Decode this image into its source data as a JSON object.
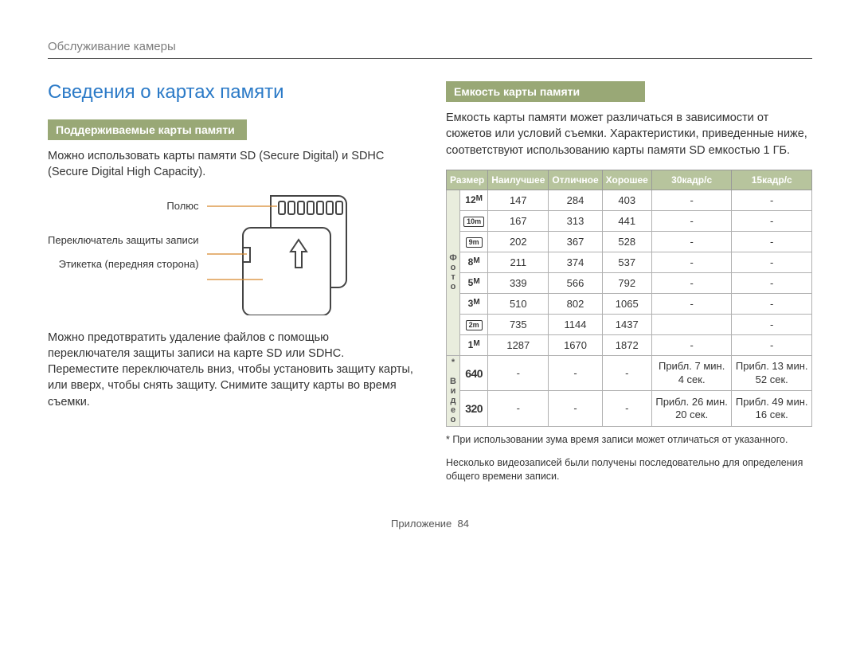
{
  "colors": {
    "accent_blue": "#2b7ac7",
    "bar_green": "#99a876",
    "header_green": "#b7c49d",
    "rowhead_bg": "#e9eddd",
    "border": "#b0b0b0",
    "grey_text": "#7d7d7d",
    "leader_orange": "#d6872a"
  },
  "breadcrumb": "Обслуживание камеры",
  "title": "Сведения о картах памяти",
  "left": {
    "section_heading": "Поддерживаемые карты памяти",
    "para1": "Можно использовать карты памяти SD (Secure Digital) и SDHC (Secure Digital High Capacity).",
    "labels": {
      "terminal": "Полюс",
      "switch": "Переключатель защиты записи",
      "label_side": "Этикетка (передняя сторона)"
    },
    "para2": "Можно предотвратить удаление файлов с помощью переключателя защиты записи на карте SD или SDHC. Переместите переключатель вниз, чтобы установить защиту карты, или вверх, чтобы снять защиту. Снимите защиту карты во время съемки."
  },
  "right": {
    "section_heading": "Емкость карты памяти",
    "para1": "Емкость карты памяти может различаться в зависимости от сюжетов или условий съемки. Характеристики, приведенные ниже, соответствуют использованию карты памяти SD емкостью 1 ГБ.",
    "table": {
      "headers": [
        "Размер",
        "Наилучшее",
        "Отличное",
        "Хорошее",
        "30кадр/с",
        "15кадр/с"
      ],
      "group_photo_label": "Фото",
      "group_video_label": "* Видео",
      "photo_rows": [
        {
          "size_html": "12<span class='m'>M</span>",
          "vals": [
            "147",
            "284",
            "403",
            "-",
            "-"
          ]
        },
        {
          "size_html": "<span class='icon-box'>10m</span>",
          "vals": [
            "167",
            "313",
            "441",
            "-",
            "-"
          ]
        },
        {
          "size_html": "<span class='icon-box'>9m</span>",
          "vals": [
            "202",
            "367",
            "528",
            "-",
            "-"
          ]
        },
        {
          "size_html": "8<span class='m'>M</span>",
          "vals": [
            "211",
            "374",
            "537",
            "-",
            "-"
          ]
        },
        {
          "size_html": "5<span class='m'>M</span>",
          "vals": [
            "339",
            "566",
            "792",
            "-",
            "-"
          ]
        },
        {
          "size_html": "3<span class='m'>M</span>",
          "vals": [
            "510",
            "802",
            "1065",
            "-",
            "-"
          ]
        },
        {
          "size_html": "<span class='icon-box'>2m</span>",
          "vals": [
            "735",
            "1144",
            "1437",
            "",
            "-"
          ]
        },
        {
          "size_html": "1<span class='m'>M</span>",
          "vals": [
            "1287",
            "1670",
            "1872",
            "-",
            "-"
          ]
        }
      ],
      "video_rows": [
        {
          "size_html": "<span class='vidres'>640</span>",
          "vals": [
            "-",
            "-",
            "-",
            "Прибл. 7 мин. 4 сек.",
            "Прибл. 13 мин. 52 сек."
          ]
        },
        {
          "size_html": "<span class='vidres'>320</span>",
          "vals": [
            "-",
            "-",
            "-",
            "Прибл. 26 мин. 20 сек.",
            "Прибл. 49 мин. 16 сек."
          ]
        }
      ]
    },
    "footnote1": "* При использовании зума время записи может отличаться от указанного.",
    "footnote2": "Несколько видеозаписей были получены последовательно для определения общего времени записи."
  },
  "footer": {
    "label": "Приложение",
    "page_number": "84"
  }
}
